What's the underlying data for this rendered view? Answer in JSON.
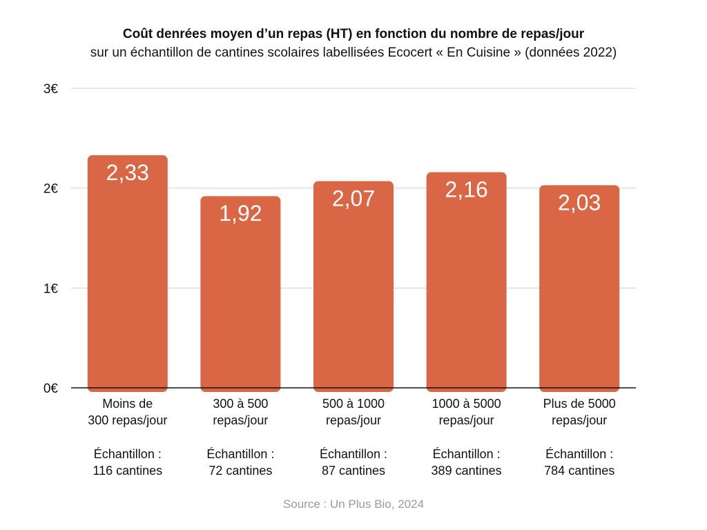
{
  "chart_data": {
    "type": "bar",
    "title": "Coût denrées moyen d’un repas (HT) en fonction du nombre de repas/jour",
    "subtitle": "sur un échantillon de cantines scolaires labellisées Ecocert « En Cuisine » (données 2022)",
    "categories": [
      [
        "Moins de",
        "300 repas/jour"
      ],
      [
        "300 à 500",
        "repas/jour"
      ],
      [
        "500 à 1000",
        "repas/jour"
      ],
      [
        "1000 à 5000",
        "repas/jour"
      ],
      [
        "Plus de 5000",
        "repas/jour"
      ]
    ],
    "samples": [
      [
        "Échantillon :",
        "116 cantines"
      ],
      [
        "Échantillon :",
        "72 cantines"
      ],
      [
        "Échantillon :",
        "87 cantines"
      ],
      [
        "Échantillon :",
        "389 cantines"
      ],
      [
        "Échantillon :",
        "784 cantines"
      ]
    ],
    "values": [
      2.33,
      1.92,
      2.07,
      2.16,
      2.03
    ],
    "value_labels": [
      "2,33",
      "1,92",
      "2,07",
      "2,16",
      "2,03"
    ],
    "yticks": [
      0,
      1,
      2,
      3
    ],
    "ytick_labels": [
      "0€",
      "1€",
      "2€",
      "3€"
    ],
    "ylim": [
      0,
      3
    ],
    "grid": true,
    "bar_color": "#d96644",
    "value_label_color": "#ffffff",
    "grid_color": "#d0d0d0",
    "axis_color": "#111111",
    "source": "Source : Un Plus Bio, 2024"
  }
}
